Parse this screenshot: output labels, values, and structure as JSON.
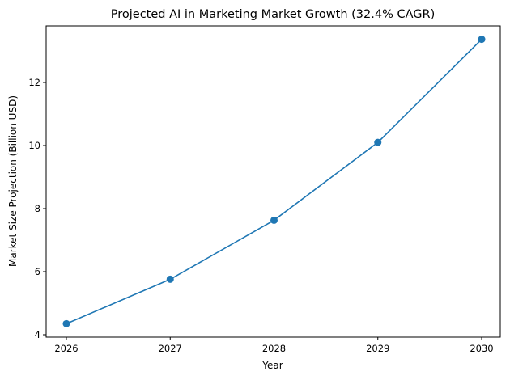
{
  "chart_data": {
    "type": "line",
    "title": "Projected AI in Marketing Market Growth (32.4% CAGR)",
    "xlabel": "Year",
    "ylabel": "Market Size Projection (Billion USD)",
    "categories": [
      "2026",
      "2027",
      "2028",
      "2029",
      "2030"
    ],
    "x": [
      2026,
      2027,
      2028,
      2029,
      2030
    ],
    "series": [
      {
        "name": "Market Size Projection",
        "values": [
          4.35,
          5.76,
          7.63,
          10.1,
          13.37
        ],
        "color": "#1f77b4",
        "marker": "circle"
      }
    ],
    "yticks": [
      "4",
      "6",
      "8",
      "10",
      "12"
    ],
    "ytick_values": [
      4,
      6,
      8,
      10,
      12
    ],
    "xticks": [
      "2026",
      "2027",
      "2028",
      "2029",
      "2030"
    ],
    "ylim": [
      3.9,
      13.82
    ],
    "xlim": [
      2025.8,
      2030.2
    ],
    "grid": false,
    "legend": null
  }
}
